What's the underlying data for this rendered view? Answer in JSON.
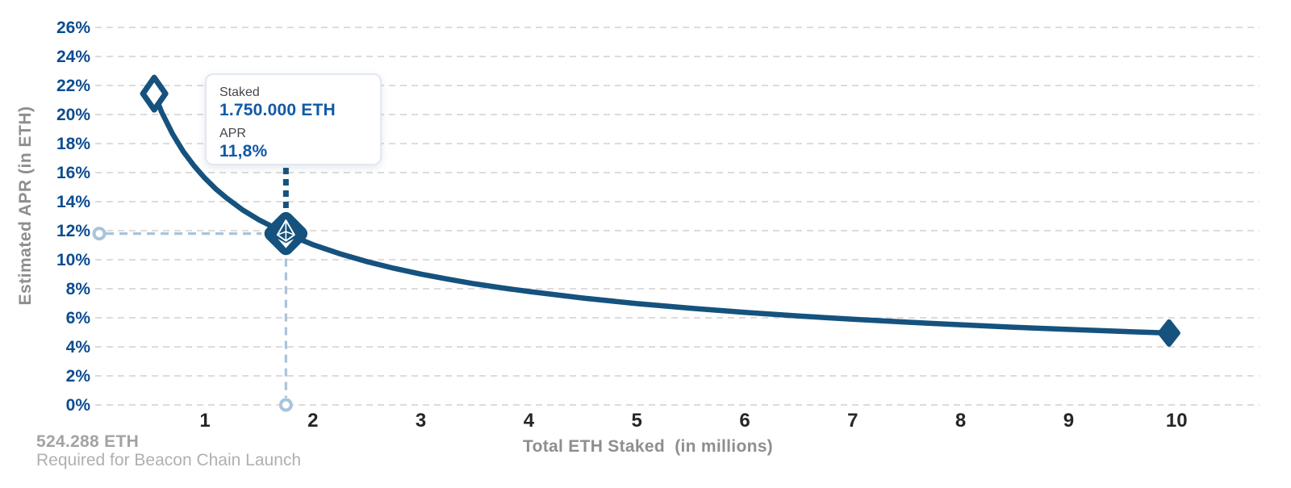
{
  "tooltip": {
    "staked_label": "Staked",
    "staked_value": "1.750.000 ETH",
    "apr_label": "APR",
    "apr_value": "11,8%"
  },
  "footer": {
    "value": "524.288 ETH",
    "caption": "Required for Beacon Chain Launch"
  },
  "chart_data": {
    "type": "line",
    "title": "",
    "xlabel": "Total ETH Staked  (in millions)",
    "ylabel": "Estimated APR (in ETH)",
    "xlim": [
      0,
      10.78
    ],
    "ylim": [
      0,
      26
    ],
    "x_ticks": [
      1,
      2,
      3,
      4,
      5,
      6,
      7,
      8,
      9,
      10
    ],
    "y_ticks": [
      0,
      2,
      4,
      6,
      8,
      10,
      12,
      14,
      16,
      18,
      20,
      22,
      24,
      26
    ],
    "y_tick_suffix": "%",
    "grid": "horizontal-dashed",
    "legend": "none",
    "series": [
      {
        "name": "Estimated APR (in ETH)",
        "points": [
          [
            0.53,
            21.44
          ],
          [
            0.6,
            20.15
          ],
          [
            0.7,
            18.66
          ],
          [
            0.8,
            17.45
          ],
          [
            0.9,
            16.46
          ],
          [
            1.0,
            15.61
          ],
          [
            1.1,
            14.88
          ],
          [
            1.2,
            14.25
          ],
          [
            1.35,
            13.43
          ],
          [
            1.5,
            12.75
          ],
          [
            1.75,
            11.8
          ],
          [
            2.0,
            11.04
          ],
          [
            2.25,
            10.41
          ],
          [
            2.5,
            9.87
          ],
          [
            2.75,
            9.41
          ],
          [
            3.0,
            9.01
          ],
          [
            3.25,
            8.66
          ],
          [
            3.5,
            8.34
          ],
          [
            3.75,
            8.06
          ],
          [
            4.0,
            7.81
          ],
          [
            4.5,
            7.36
          ],
          [
            5.0,
            6.98
          ],
          [
            5.5,
            6.66
          ],
          [
            6.0,
            6.37
          ],
          [
            6.5,
            6.12
          ],
          [
            7.0,
            5.9
          ],
          [
            7.5,
            5.7
          ],
          [
            8.0,
            5.52
          ],
          [
            8.5,
            5.35
          ],
          [
            9.0,
            5.2
          ],
          [
            9.5,
            5.06
          ],
          [
            9.93,
            4.95
          ]
        ]
      }
    ],
    "markers": {
      "start_point": {
        "x": 0.53,
        "apr": 21.44,
        "style": "open-diamond"
      },
      "highlight_point": {
        "x": 1.75,
        "apr": 11.8,
        "style": "eth-logo-diamond"
      },
      "end_point": {
        "x": 9.93,
        "apr": 4.95,
        "style": "filled-diamond"
      }
    },
    "colors": {
      "curve": "#15527e",
      "y_tick_text": "#0c4c8f",
      "x_tick_text": "#262626",
      "grid": "#dcdcdc",
      "guide_dash_light": "#a9c3dc",
      "guide_dash_dark": "#15527e",
      "axis_title_gray": "#8e8e8e",
      "tooltip_value_blue": "#1159a5",
      "background": "#ffffff"
    }
  }
}
